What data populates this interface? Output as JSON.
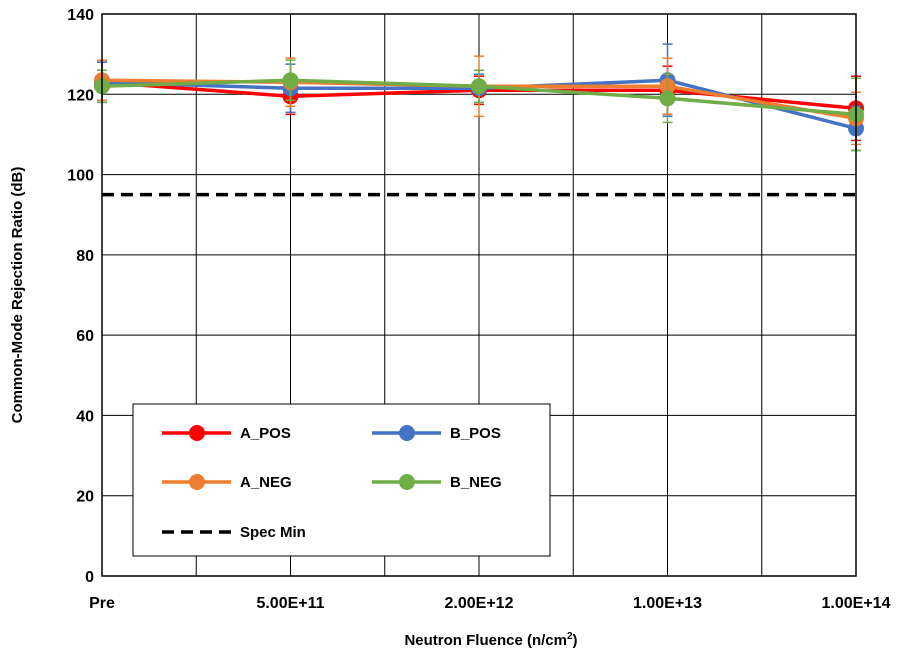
{
  "chart_data": {
    "type": "line",
    "xlabel": "Neutron Fluence (n/cm²)",
    "xlabel_main": "Neutron Fluence (n/cm",
    "xlabel_sup": "2",
    "xlabel_tail": ")",
    "ylabel": "Common-Mode Rejection Ratio (dB)",
    "categories": [
      "Pre",
      "5.00E+11",
      "2.00E+12",
      "1.00E+13",
      "1.00E+14"
    ],
    "ylim": [
      0,
      140
    ],
    "yticks": [
      "0",
      "20",
      "40",
      "60",
      "80",
      "100",
      "120",
      "140"
    ],
    "grid": true,
    "legend_position": "bottom-left",
    "series": [
      {
        "name": "A_POS",
        "color": "#ff0000",
        "values": [
          123,
          119.5,
          121,
          121,
          116.5
        ],
        "err": [
          5,
          4.5,
          3.5,
          6,
          8
        ]
      },
      {
        "name": "B_POS",
        "color": "#4472c4",
        "values": [
          123,
          121.5,
          121.5,
          123.5,
          111.5
        ],
        "err": [
          5,
          6,
          3.5,
          9,
          5.5
        ]
      },
      {
        "name": "A_NEG",
        "color": "#ed7d31",
        "values": [
          123.5,
          123,
          122,
          122,
          114
        ],
        "err": [
          5,
          6,
          7.5,
          7,
          6.5
        ]
      },
      {
        "name": "B_NEG",
        "color": "#70ad47",
        "values": [
          122,
          123.5,
          122,
          119,
          115
        ],
        "err": [
          4,
          5,
          4,
          6,
          9
        ]
      }
    ],
    "reference_line": {
      "name": "Spec Min",
      "value": 95,
      "color": "#000000",
      "style": "dashed"
    }
  }
}
